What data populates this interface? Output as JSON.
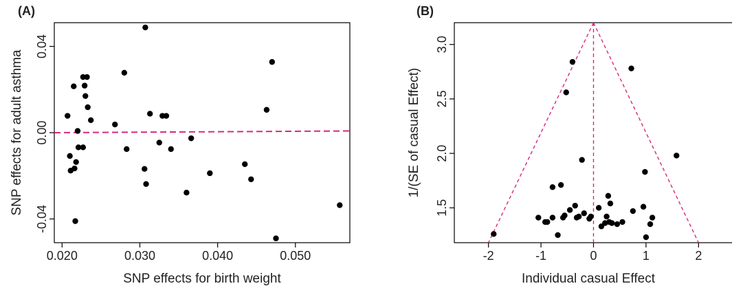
{
  "colors": {
    "points": "#000000",
    "reference_line": "#d6287d",
    "axes": "#000000"
  },
  "chart_data": [
    {
      "panel_label": "(A)",
      "type": "scatter",
      "title": "",
      "xlabel": "SNP effects for birth weight",
      "ylabel": "SNP effects for adult asthma",
      "xlim": [
        0.019,
        0.057
      ],
      "ylim": [
        -0.051,
        0.051
      ],
      "x_ticks": [
        0.02,
        0.03,
        0.04,
        0.05
      ],
      "x_tick_labels": [
        "0.020",
        "0.030",
        "0.040",
        "0.050"
      ],
      "y_ticks": [
        -0.04,
        0.0,
        0.04
      ],
      "y_tick_labels": [
        "-0.04",
        "0.00",
        "0.04"
      ],
      "grid": false,
      "reference_line": {
        "style": "dashed",
        "x": [
          0.019,
          0.057
        ],
        "y": [
          0.0,
          0.0008
        ]
      },
      "points": [
        {
          "x": 0.0207,
          "y": 0.0078
        },
        {
          "x": 0.021,
          "y": -0.0108
        },
        {
          "x": 0.0211,
          "y": -0.0176
        },
        {
          "x": 0.0215,
          "y": 0.0215
        },
        {
          "x": 0.0216,
          "y": -0.0166
        },
        {
          "x": 0.0217,
          "y": -0.041
        },
        {
          "x": 0.0218,
          "y": -0.0136
        },
        {
          "x": 0.022,
          "y": 0.0008
        },
        {
          "x": 0.0221,
          "y": -0.0068
        },
        {
          "x": 0.0227,
          "y": -0.0068
        },
        {
          "x": 0.0227,
          "y": 0.0258
        },
        {
          "x": 0.0229,
          "y": 0.0218
        },
        {
          "x": 0.023,
          "y": 0.017
        },
        {
          "x": 0.0232,
          "y": 0.0258
        },
        {
          "x": 0.0233,
          "y": 0.0118
        },
        {
          "x": 0.0237,
          "y": 0.0058
        },
        {
          "x": 0.0268,
          "y": 0.0038
        },
        {
          "x": 0.028,
          "y": 0.0278
        },
        {
          "x": 0.0283,
          "y": -0.0076
        },
        {
          "x": 0.0306,
          "y": -0.0168
        },
        {
          "x": 0.0307,
          "y": 0.0488
        },
        {
          "x": 0.0308,
          "y": -0.0238
        },
        {
          "x": 0.0313,
          "y": 0.0088
        },
        {
          "x": 0.0325,
          "y": -0.0046
        },
        {
          "x": 0.0329,
          "y": 0.0078
        },
        {
          "x": 0.0334,
          "y": 0.0078
        },
        {
          "x": 0.034,
          "y": -0.0076
        },
        {
          "x": 0.036,
          "y": -0.0278
        },
        {
          "x": 0.0366,
          "y": -0.0026
        },
        {
          "x": 0.039,
          "y": -0.0188
        },
        {
          "x": 0.0435,
          "y": -0.0146
        },
        {
          "x": 0.0443,
          "y": -0.0216
        },
        {
          "x": 0.0463,
          "y": 0.0106
        },
        {
          "x": 0.047,
          "y": 0.0328
        },
        {
          "x": 0.0475,
          "y": -0.049
        },
        {
          "x": 0.0557,
          "y": -0.0336
        }
      ]
    },
    {
      "panel_label": "(B)",
      "type": "scatter",
      "title": "",
      "xlabel": "Individual casual Effect",
      "ylabel": "1/(SE of casual Effect)",
      "xlim": [
        -2.65,
        2.65
      ],
      "ylim": [
        1.18,
        3.2
      ],
      "x_ticks": [
        -2,
        -1,
        0,
        1,
        2
      ],
      "x_tick_labels": [
        "-2",
        "-1",
        "0",
        "1",
        "2"
      ],
      "y_ticks": [
        1.5,
        2.0,
        2.5,
        3.0
      ],
      "y_tick_labels": [
        "1.5",
        "2.0",
        "2.5",
        "3.0"
      ],
      "grid": false,
      "reference_lines": {
        "style": "dashed",
        "vertical": {
          "x": [
            0,
            0
          ],
          "y": [
            1.18,
            3.2
          ]
        },
        "funnel_left": {
          "x": [
            0.0,
            -2.0
          ],
          "y": [
            3.2,
            1.18
          ]
        },
        "funnel_right": {
          "x": [
            0.0,
            2.0
          ],
          "y": [
            3.2,
            1.18
          ]
        }
      },
      "points": [
        {
          "x": -1.9,
          "y": 1.26
        },
        {
          "x": -1.05,
          "y": 1.41
        },
        {
          "x": -0.92,
          "y": 1.37
        },
        {
          "x": -0.88,
          "y": 1.37
        },
        {
          "x": -0.78,
          "y": 1.41
        },
        {
          "x": -0.78,
          "y": 1.69
        },
        {
          "x": -0.68,
          "y": 1.25
        },
        {
          "x": -0.62,
          "y": 1.71
        },
        {
          "x": -0.58,
          "y": 1.41
        },
        {
          "x": -0.55,
          "y": 1.43
        },
        {
          "x": -0.52,
          "y": 2.56
        },
        {
          "x": -0.45,
          "y": 1.48
        },
        {
          "x": -0.4,
          "y": 2.84
        },
        {
          "x": -0.35,
          "y": 1.52
        },
        {
          "x": -0.32,
          "y": 1.41
        },
        {
          "x": -0.28,
          "y": 1.42
        },
        {
          "x": -0.22,
          "y": 1.94
        },
        {
          "x": -0.18,
          "y": 1.45
        },
        {
          "x": -0.08,
          "y": 1.4
        },
        {
          "x": -0.05,
          "y": 1.42
        },
        {
          "x": 0.1,
          "y": 1.5
        },
        {
          "x": 0.15,
          "y": 1.33
        },
        {
          "x": 0.22,
          "y": 1.36
        },
        {
          "x": 0.25,
          "y": 1.42
        },
        {
          "x": 0.28,
          "y": 1.61
        },
        {
          "x": 0.3,
          "y": 1.37
        },
        {
          "x": 0.32,
          "y": 1.54
        },
        {
          "x": 0.35,
          "y": 1.36
        },
        {
          "x": 0.45,
          "y": 1.35
        },
        {
          "x": 0.55,
          "y": 1.37
        },
        {
          "x": 0.72,
          "y": 2.78
        },
        {
          "x": 0.75,
          "y": 1.47
        },
        {
          "x": 0.95,
          "y": 1.51
        },
        {
          "x": 0.98,
          "y": 1.83
        },
        {
          "x": 1.0,
          "y": 1.23
        },
        {
          "x": 1.08,
          "y": 1.35
        },
        {
          "x": 1.12,
          "y": 1.41
        },
        {
          "x": 1.58,
          "y": 1.98
        }
      ]
    }
  ]
}
